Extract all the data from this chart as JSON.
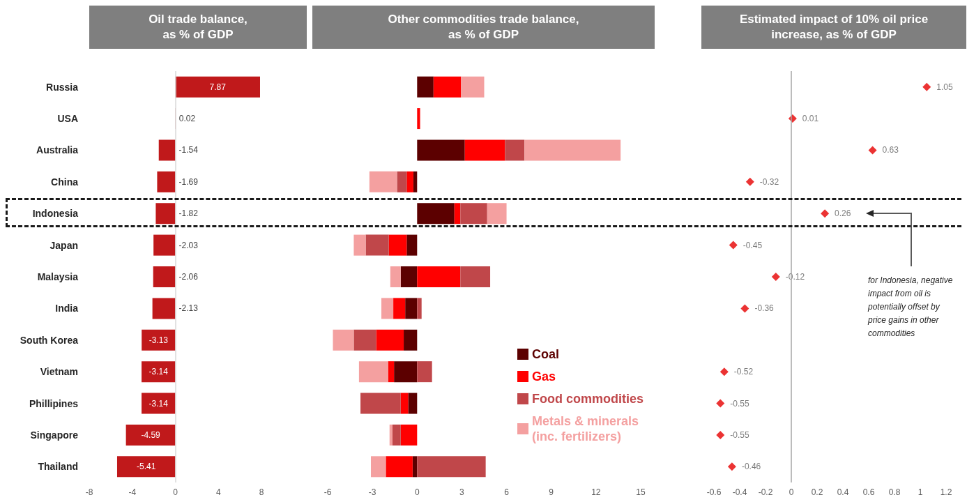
{
  "chart_data": [
    {
      "type": "bar",
      "orientation": "horizontal",
      "title": "Oil trade balance, as % of GDP",
      "categories": [
        "Russia",
        "USA",
        "Australia",
        "China",
        "Indonesia",
        "Japan",
        "Malaysia",
        "India",
        "South Korea",
        "Vietnam",
        "Phillipines",
        "Singapore",
        "Thailand"
      ],
      "values": [
        7.87,
        0.02,
        -1.54,
        -1.69,
        -1.82,
        -2.03,
        -2.06,
        -2.13,
        -3.13,
        -3.14,
        -3.14,
        -4.59,
        -5.41
      ],
      "color": "#c0191b",
      "data_labels": true,
      "xlim": [
        -8,
        8
      ],
      "xticks": [
        -8,
        -4,
        0,
        4,
        8
      ],
      "ref_lines": [
        {
          "axis": "x",
          "value": 0,
          "color": "#d9d9d9"
        }
      ]
    },
    {
      "type": "bar",
      "orientation": "horizontal",
      "stacked": true,
      "title": "Other commodities trade balance, as % of GDP",
      "categories": [
        null,
        null,
        null,
        null,
        null,
        null,
        null,
        null,
        null,
        null,
        null,
        null,
        null
      ],
      "series": [
        {
          "name": "Coal",
          "color": "#5c0000",
          "values": [
            1.1,
            0,
            3.2,
            -0.25,
            2.5,
            -0.7,
            -1.1,
            -0.8,
            -0.9,
            -1.55,
            -0.6,
            0,
            -0.3
          ]
        },
        {
          "name": "Gas",
          "color": "#ff0000",
          "values": [
            1.85,
            0.2,
            2.7,
            -0.45,
            0.4,
            -1.2,
            2.9,
            -0.8,
            -1.85,
            -0.4,
            -0.5,
            -1.1,
            -1.8
          ]
        },
        {
          "name": "Food commodities",
          "color": "#c0474a",
          "values": [
            0,
            0,
            1.3,
            -0.65,
            1.8,
            -1.55,
            2,
            0.3,
            -1.5,
            1,
            -2.7,
            -0.55,
            4.6
          ]
        },
        {
          "name": "Metals & minerals (inc. fertilizers)",
          "color": "#f4a0a0",
          "values": [
            1.55,
            0,
            6.45,
            -1.85,
            1.3,
            -0.8,
            -0.7,
            -0.8,
            -1.4,
            -1.95,
            0,
            -0.2,
            -1
          ]
        }
      ],
      "xlim": [
        -6,
        15
      ],
      "xticks": [
        -6,
        -3,
        0,
        3,
        6,
        9,
        12,
        15
      ],
      "legend": "bottom right",
      "tick_labels": "x"
    },
    {
      "type": "scatter",
      "orientation": "horizontal",
      "title": "Estimated impact of 10% oil price increase, as % of GDP",
      "categories": [
        null,
        null,
        null,
        null,
        null,
        null,
        null,
        null,
        null,
        null,
        null,
        null,
        null
      ],
      "values": [
        1.05,
        0.01,
        0.63,
        -0.32,
        0.26,
        -0.45,
        -0.12,
        -0.36,
        null,
        -0.52,
        -0.55,
        -0.55,
        -0.46
      ],
      "color": "#e60000",
      "marker": "diamond",
      "data_labels": true,
      "xlim": [
        -0.6,
        1.2
      ],
      "xticks": [
        -0.6,
        -0.4,
        -0.2,
        0,
        0.2,
        0.4,
        0.6,
        0.8,
        1,
        1.2
      ],
      "tick_labels": "x",
      "ref_lines": [
        {
          "axis": "x",
          "value": 0,
          "color": "#a6a6a6"
        }
      ],
      "annotations": [
        "for Indonesia, negative impact from oil is potentially offset by price gains in other commodities"
      ]
    }
  ]
}
